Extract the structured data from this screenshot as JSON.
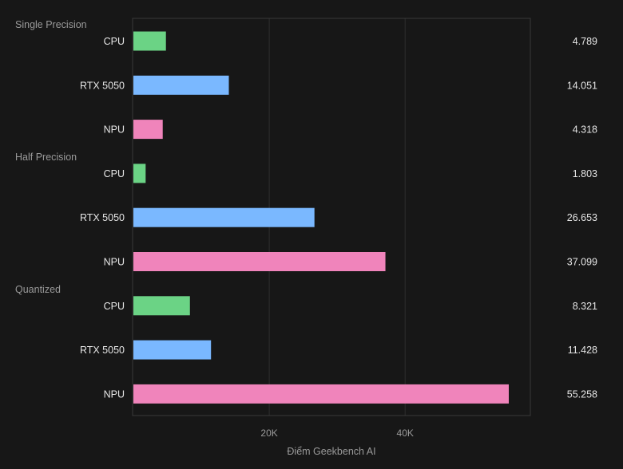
{
  "chart_data": {
    "type": "bar",
    "orientation": "horizontal",
    "xlabel": "Điểm Geekbench AI",
    "x_ticks": [
      {
        "value": 20000,
        "label": "20K"
      },
      {
        "value": 40000,
        "label": "40K"
      }
    ],
    "xlim": [
      0,
      58500
    ],
    "grid": true,
    "groups": [
      {
        "name": "Single Precision",
        "bars": [
          {
            "category": "CPU",
            "value": 4789,
            "label": "4.789"
          },
          {
            "category": "RTX 5050",
            "value": 14051,
            "label": "14.051"
          },
          {
            "category": "NPU",
            "value": 4318,
            "label": "4.318"
          }
        ]
      },
      {
        "name": "Half Precision",
        "bars": [
          {
            "category": "CPU",
            "value": 1803,
            "label": "1.803"
          },
          {
            "category": "RTX 5050",
            "value": 26653,
            "label": "26.653"
          },
          {
            "category": "NPU",
            "value": 37099,
            "label": "37.099"
          }
        ]
      },
      {
        "name": "Quantized",
        "bars": [
          {
            "category": "CPU",
            "value": 8321,
            "label": "8.321"
          },
          {
            "category": "RTX 5050",
            "value": 11428,
            "label": "11.428"
          },
          {
            "category": "NPU",
            "value": 55258,
            "label": "55.258"
          }
        ]
      }
    ],
    "colors": {
      "CPU": "#6bd385",
      "RTX 5050": "#7ab8ff",
      "NPU": "#f084bb",
      "grid": "#2e2e2e",
      "frame": "#3a3a3a",
      "background": "#171717"
    }
  }
}
